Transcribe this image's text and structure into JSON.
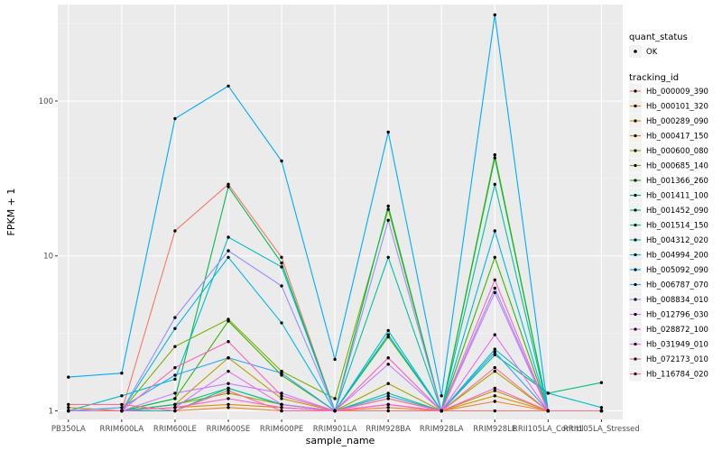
{
  "chart_data": {
    "type": "line",
    "xlabel": "sample_name",
    "ylabel": "FPKM + 1",
    "y_scale": "log10",
    "ylim": [
      0.88,
      420
    ],
    "y_ticks": [
      {
        "value": 1,
        "label": "1"
      },
      {
        "value": 10,
        "label": "10"
      },
      {
        "value": 100,
        "label": "100"
      }
    ],
    "categories": [
      "PB350LA",
      "RRIM600LA",
      "RRIM600LE",
      "RRIM600SE",
      "RRIM600PE",
      "RRIM901LA",
      "RRIM928BA",
      "RRIM928LA",
      "RRIM928LE",
      "RRII105LA_Control",
      "RRII105LA_Stressed"
    ],
    "point_legend": {
      "title": "quant_status",
      "items": [
        {
          "label": "OK",
          "color": "#000000"
        }
      ]
    },
    "series_legend_title": "tracking_id",
    "grid": true,
    "legend_position": "right",
    "series": [
      {
        "name": "Hb_000009_390",
        "color": "#F8766D",
        "values": [
          1.0,
          1.0,
          14.5,
          29.0,
          9.8,
          1.0,
          1.0,
          1.0,
          1.0,
          1.0,
          1.0
        ]
      },
      {
        "name": "Hb_000101_320",
        "color": "#EA8331",
        "values": [
          1.0,
          1.0,
          1.0,
          1.05,
          1.0,
          1.0,
          1.05,
          1.0,
          1.15,
          1.0,
          1.0
        ]
      },
      {
        "name": "Hb_000289_090",
        "color": "#D89000",
        "values": [
          1.05,
          1.0,
          1.05,
          1.1,
          1.05,
          1.0,
          1.1,
          1.0,
          1.25,
          1.0,
          1.0
        ]
      },
      {
        "name": "Hb_000417_150",
        "color": "#C09B00",
        "values": [
          1.0,
          1.0,
          1.1,
          2.2,
          1.2,
          1.0,
          1.2,
          1.0,
          1.35,
          1.0,
          1.0
        ]
      },
      {
        "name": "Hb_000600_080",
        "color": "#A3A500",
        "values": [
          1.0,
          1.0,
          1.1,
          1.3,
          1.1,
          1.0,
          1.5,
          1.0,
          1.8,
          1.0,
          1.0
        ]
      },
      {
        "name": "Hb_000685_140",
        "color": "#7CAE00",
        "values": [
          1.0,
          1.0,
          2.6,
          3.9,
          1.8,
          1.2,
          20.0,
          1.0,
          45.0,
          1.0,
          1.0
        ]
      },
      {
        "name": "Hb_001366_260",
        "color": "#39B600",
        "values": [
          1.0,
          1.0,
          1.2,
          3.8,
          1.7,
          1.0,
          3.0,
          1.0,
          9.8,
          1.0,
          1.0
        ]
      },
      {
        "name": "Hb_001411_100",
        "color": "#00BB4E",
        "values": [
          1.0,
          1.0,
          1.2,
          28.0,
          9.0,
          1.0,
          21.0,
          1.0,
          43.0,
          1.0,
          1.0
        ]
      },
      {
        "name": "Hb_001452_090",
        "color": "#00BF7D",
        "values": [
          1.0,
          1.0,
          1.1,
          1.4,
          1.1,
          1.0,
          1.3,
          1.0,
          2.3,
          1.3,
          1.52
        ]
      },
      {
        "name": "Hb_001514_150",
        "color": "#00C1A3",
        "values": [
          1.0,
          1.0,
          1.0,
          1.4,
          1.1,
          1.0,
          9.8,
          1.0,
          29.0,
          1.0,
          1.0
        ]
      },
      {
        "name": "Hb_004312_020",
        "color": "#00BFC4",
        "values": [
          1.0,
          1.25,
          1.6,
          13.2,
          8.5,
          1.0,
          3.3,
          1.0,
          2.5,
          1.3,
          1.05
        ]
      },
      {
        "name": "Hb_004994_200",
        "color": "#00B8E5",
        "values": [
          1.0,
          1.0,
          3.4,
          9.8,
          3.7,
          1.0,
          3.1,
          1.0,
          14.5,
          1.0,
          1.0
        ]
      },
      {
        "name": "Hb_005092_090",
        "color": "#00ACFC",
        "values": [
          1.65,
          1.75,
          77.0,
          125.0,
          41.0,
          2.15,
          63.0,
          1.25,
          360.0,
          1.0,
          1.0
        ]
      },
      {
        "name": "Hb_006787_070",
        "color": "#35A2FF",
        "values": [
          1.0,
          1.05,
          1.7,
          2.2,
          1.75,
          1.0,
          1.25,
          1.0,
          2.4,
          1.0,
          1.0
        ]
      },
      {
        "name": "Hb_008834_010",
        "color": "#9590FF",
        "values": [
          1.0,
          1.0,
          4.0,
          10.8,
          6.4,
          1.0,
          17.0,
          1.0,
          6.2,
          1.0,
          1.0
        ]
      },
      {
        "name": "Hb_012796_030",
        "color": "#C77CFF",
        "values": [
          1.0,
          1.0,
          1.3,
          1.5,
          1.3,
          1.0,
          2.0,
          1.0,
          5.8,
          1.0,
          1.0
        ]
      },
      {
        "name": "Hb_028872_100",
        "color": "#E76BF3",
        "values": [
          1.0,
          1.0,
          1.05,
          1.8,
          1.1,
          1.0,
          1.1,
          1.0,
          3.1,
          1.0,
          1.0
        ]
      },
      {
        "name": "Hb_031949_010",
        "color": "#FA62DB",
        "values": [
          1.0,
          1.0,
          1.05,
          1.2,
          1.05,
          1.0,
          1.1,
          1.0,
          1.4,
          1.0,
          1.0
        ]
      },
      {
        "name": "Hb_072173_010",
        "color": "#FF62BC",
        "values": [
          1.0,
          1.0,
          1.9,
          2.8,
          1.25,
          1.0,
          2.2,
          1.0,
          7.0,
          1.0,
          1.0
        ]
      },
      {
        "name": "Hb_116784_020",
        "color": "#FF6C91",
        "values": [
          1.1,
          1.1,
          1.0,
          1.35,
          1.0,
          1.0,
          1.2,
          1.0,
          1.9,
          1.0,
          1.0
        ]
      }
    ]
  }
}
